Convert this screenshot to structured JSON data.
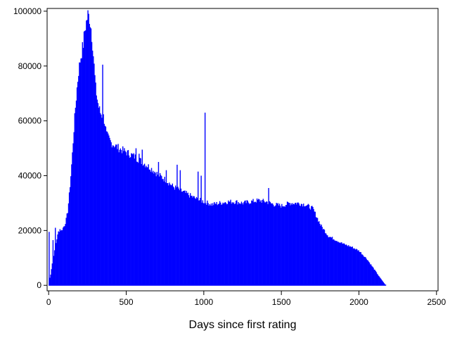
{
  "chart_data": {
    "type": "bar",
    "title": "",
    "xlabel": "Days since first rating",
    "ylabel": "",
    "xlim": [
      -10,
      2510
    ],
    "ylim": [
      -2000,
      101000
    ],
    "x_ticks": [
      0,
      500,
      1000,
      1500,
      2000,
      2500
    ],
    "x_tick_labels": [
      "0",
      "500",
      "1000",
      "1500",
      "2000",
      "2500"
    ],
    "y_ticks": [
      0,
      20000,
      40000,
      60000,
      80000,
      100000
    ],
    "y_tick_labels": [
      "0",
      "20000",
      "40000",
      "60000",
      "80000",
      "100000"
    ],
    "grid": false,
    "bar_color": "#0000ff",
    "bin_width": 5,
    "profile_points": [
      [
        0,
        1500
      ],
      [
        10,
        4000
      ],
      [
        20,
        8000
      ],
      [
        30,
        11000
      ],
      [
        40,
        14000
      ],
      [
        50,
        17000
      ],
      [
        60,
        19500
      ],
      [
        70,
        20500
      ],
      [
        80,
        20000
      ],
      [
        90,
        21000
      ],
      [
        100,
        22000
      ],
      [
        110,
        24000
      ],
      [
        120,
        27000
      ],
      [
        130,
        33000
      ],
      [
        140,
        40000
      ],
      [
        150,
        48000
      ],
      [
        160,
        57000
      ],
      [
        170,
        65000
      ],
      [
        180,
        72000
      ],
      [
        190,
        78000
      ],
      [
        200,
        82000
      ],
      [
        210,
        85000
      ],
      [
        220,
        88000
      ],
      [
        230,
        93000
      ],
      [
        240,
        96000
      ],
      [
        250,
        98800
      ],
      [
        260,
        97500
      ],
      [
        270,
        94000
      ],
      [
        280,
        88000
      ],
      [
        290,
        80000
      ],
      [
        300,
        72000
      ],
      [
        310,
        68000
      ],
      [
        320,
        65000
      ],
      [
        330,
        63000
      ],
      [
        340,
        62000
      ],
      [
        350,
        61500
      ],
      [
        360,
        59000
      ],
      [
        370,
        55000
      ],
      [
        380,
        54000
      ],
      [
        390,
        53000
      ],
      [
        400,
        52000
      ],
      [
        450,
        50000
      ],
      [
        500,
        48500
      ],
      [
        550,
        47000
      ],
      [
        600,
        45000
      ],
      [
        650,
        43000
      ],
      [
        700,
        40500
      ],
      [
        750,
        38500
      ],
      [
        800,
        36000
      ],
      [
        850,
        34500
      ],
      [
        900,
        33000
      ],
      [
        950,
        31500
      ],
      [
        1000,
        30500
      ],
      [
        1050,
        29500
      ],
      [
        1100,
        30000
      ],
      [
        1150,
        30500
      ],
      [
        1200,
        30500
      ],
      [
        1250,
        30000
      ],
      [
        1300,
        30500
      ],
      [
        1350,
        31000
      ],
      [
        1400,
        30500
      ],
      [
        1450,
        29500
      ],
      [
        1500,
        29000
      ],
      [
        1550,
        30000
      ],
      [
        1600,
        30000
      ],
      [
        1650,
        29500
      ],
      [
        1700,
        28000
      ],
      [
        1750,
        22000
      ],
      [
        1800,
        18000
      ],
      [
        1850,
        16500
      ],
      [
        1900,
        15000
      ],
      [
        1950,
        14000
      ],
      [
        2000,
        12500
      ],
      [
        2050,
        9500
      ],
      [
        2100,
        5500
      ],
      [
        2130,
        3000
      ],
      [
        2150,
        1500
      ],
      [
        2165,
        400
      ],
      [
        2175,
        0
      ]
    ],
    "spikes": [
      [
        0,
        19500
      ],
      [
        25,
        16500
      ],
      [
        40,
        21000
      ],
      [
        345,
        80500
      ],
      [
        1005,
        63000
      ],
      [
        825,
        44000
      ],
      [
        845,
        42000
      ],
      [
        755,
        42000
      ],
      [
        705,
        45000
      ],
      [
        1415,
        35500
      ],
      [
        560,
        50000
      ],
      [
        600,
        49500
      ],
      [
        580,
        48000
      ],
      [
        960,
        41500
      ],
      [
        980,
        40000
      ]
    ]
  }
}
